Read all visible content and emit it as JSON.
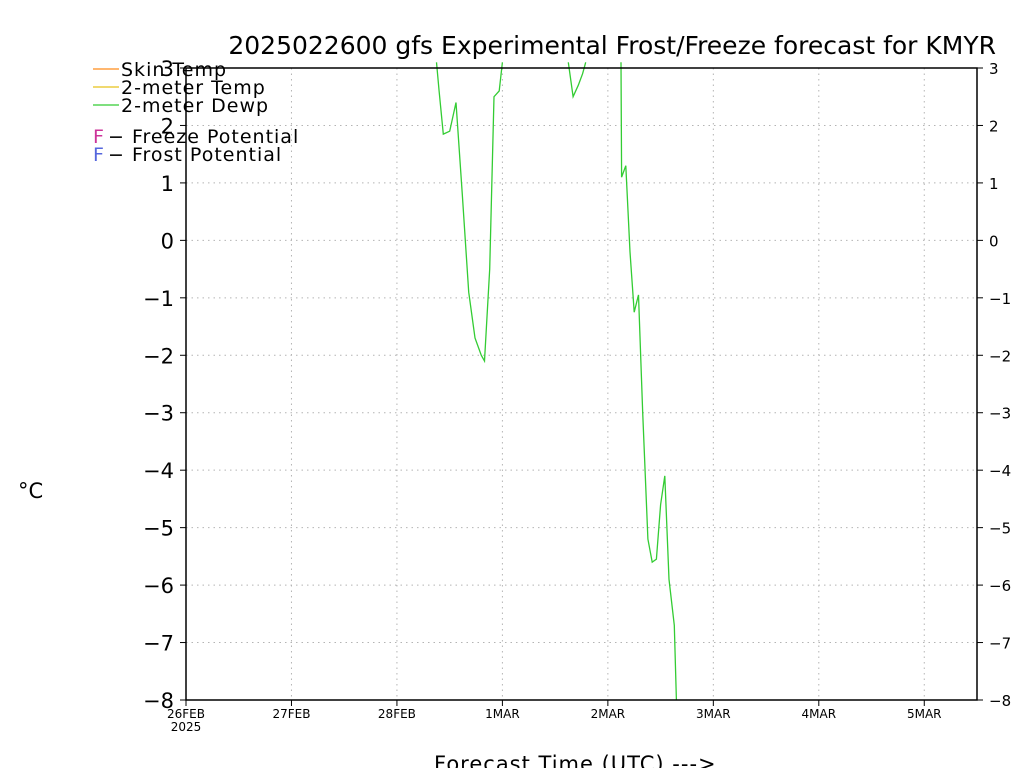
{
  "chart_data": {
    "type": "line",
    "title": "2025022600 gfs Experimental Frost/Freeze forecast for KMYR",
    "xlabel": "Forecast Time (UTC) --->",
    "ylabel": "°C",
    "ylim": [
      -8,
      3
    ],
    "yticks": [
      3,
      2,
      1,
      0,
      -1,
      -2,
      -3,
      -4,
      -5,
      -6,
      -7,
      -8
    ],
    "ytick_labels": [
      "3",
      "2",
      "1",
      "0",
      "−1",
      "−2",
      "−3",
      "−4",
      "−5",
      "−6",
      "−7",
      "−8"
    ],
    "xlim": [
      0,
      7.5
    ],
    "x_units": "days since 26FEB2025 00Z",
    "xtick_labels": [
      "26FEB",
      "27FEB",
      "28FEB",
      "1MAR",
      "2MAR",
      "3MAR",
      "4MAR",
      "5MAR"
    ],
    "xtick_sublabel": "2025",
    "grid": true,
    "legend_placement": "top-left",
    "legend": [
      {
        "name": "Skin Temp",
        "color": "#ff8c1a"
      },
      {
        "name": "2-meter Temp",
        "color": "#e6c21a"
      },
      {
        "name": "2-meter Dewp",
        "color": "#33cc33"
      }
    ],
    "potential_legend": [
      {
        "marker": "F",
        "text": " − Freeze Potential",
        "color": "#cc3399"
      },
      {
        "marker": "F",
        "text": " − Frost Potential",
        "color": "#5566dd"
      }
    ],
    "series": [
      {
        "name": "2-meter Dewp",
        "color": "#33cc33",
        "segments": [
          [
            [
              2.375,
              3.2
            ],
            [
              2.4,
              2.6
            ],
            [
              2.44,
              1.85
            ],
            [
              2.5,
              1.9
            ],
            [
              2.56,
              2.4
            ],
            [
              2.62,
              0.8
            ],
            [
              2.68,
              -0.9
            ],
            [
              2.74,
              -1.7
            ],
            [
              2.8,
              -2.0
            ],
            [
              2.83,
              -2.1
            ],
            [
              2.88,
              -0.5
            ],
            [
              2.92,
              2.5
            ],
            [
              2.97,
              2.6
            ],
            [
              3.0,
              3.2
            ]
          ],
          [
            [
              3.625,
              3.2
            ],
            [
              3.67,
              2.5
            ],
            [
              3.72,
              2.7
            ],
            [
              3.76,
              2.9
            ],
            [
              3.79,
              3.2
            ]
          ],
          [
            [
              4.125,
              3.2
            ],
            [
              4.13,
              1.1
            ],
            [
              4.17,
              1.3
            ],
            [
              4.21,
              -0.2
            ],
            [
              4.25,
              -1.25
            ],
            [
              4.29,
              -0.95
            ],
            [
              4.33,
              -3.0
            ],
            [
              4.38,
              -5.2
            ],
            [
              4.42,
              -5.6
            ],
            [
              4.46,
              -5.55
            ],
            [
              4.5,
              -4.6
            ],
            [
              4.54,
              -4.1
            ],
            [
              4.58,
              -5.9
            ],
            [
              4.63,
              -6.7
            ],
            [
              4.65,
              -8.0
            ]
          ]
        ]
      }
    ]
  }
}
